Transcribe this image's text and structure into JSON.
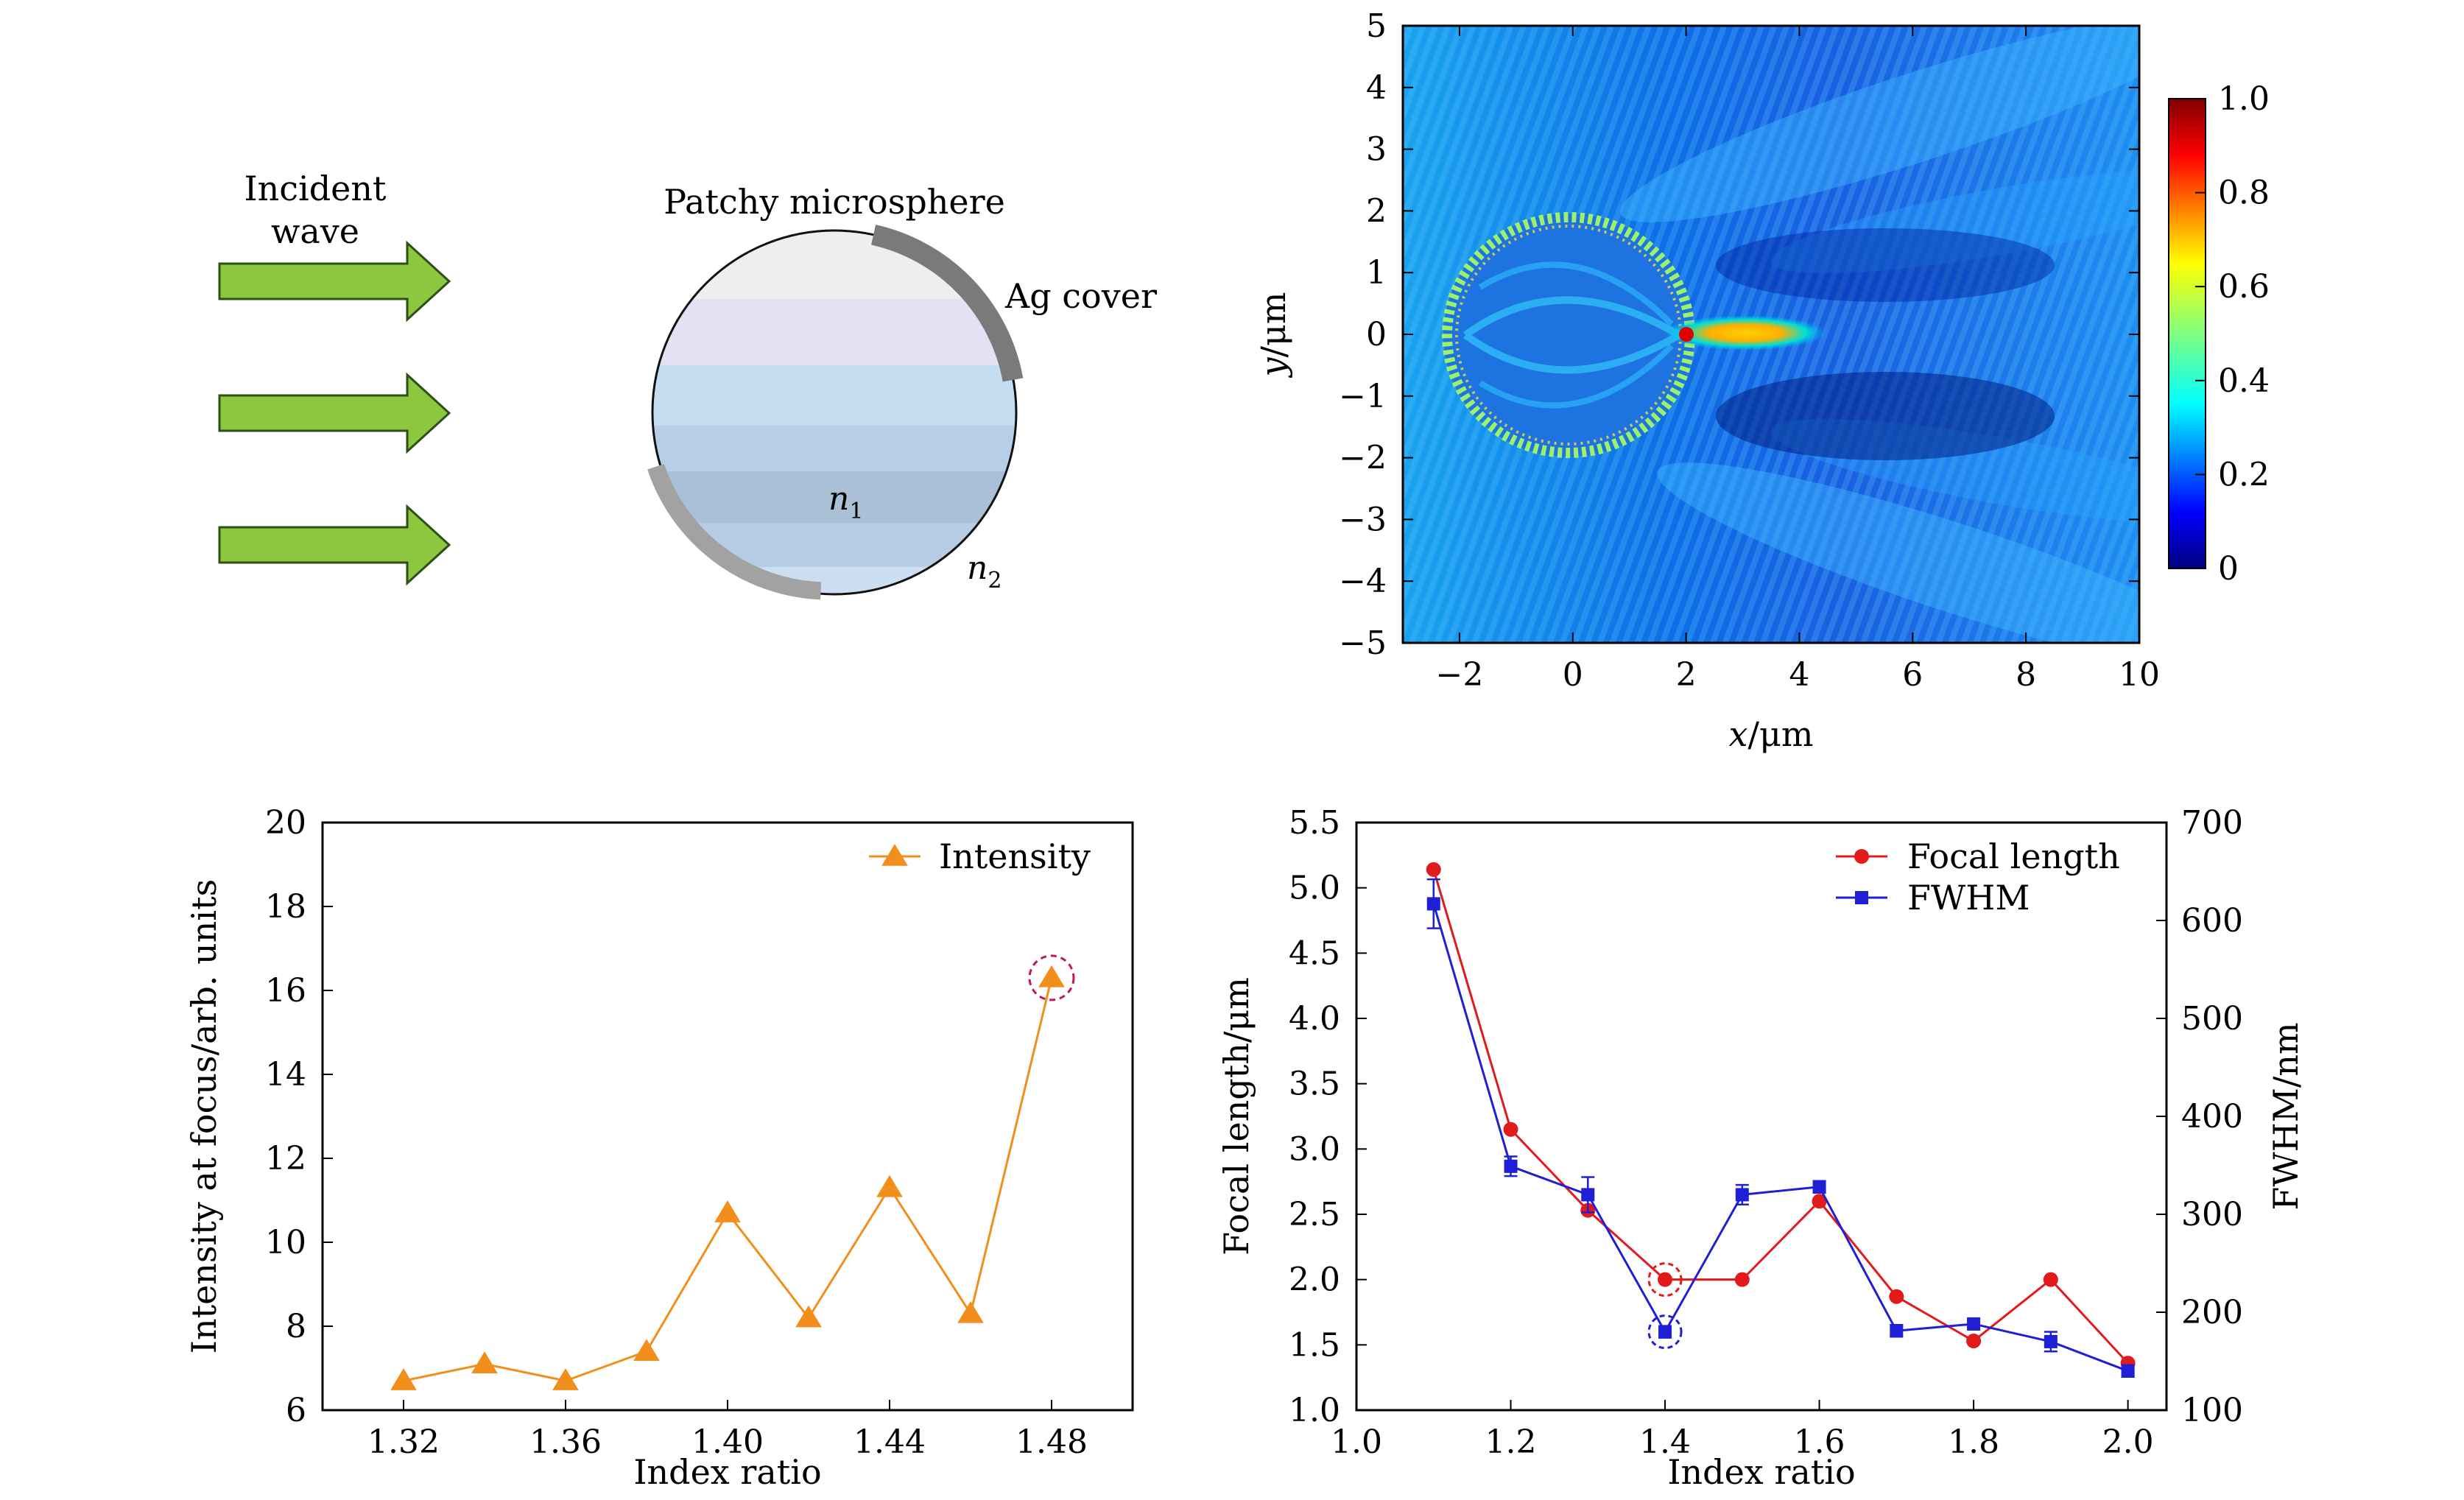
{
  "diagram": {
    "incident_label": [
      "Incident",
      "wave"
    ],
    "sphere_label": "Patchy microsphere",
    "ag_label": "Ag cover",
    "n1_label": "n",
    "n1_sub": "1",
    "n2_label": "n",
    "n2_sub": "2",
    "colors": {
      "arrow": "#8dc63f",
      "arrow_edge": "#2d5016",
      "cover": "#7a7a7a"
    }
  },
  "field_map": {
    "xlabel_var": "x",
    "xlabel_unit": "/μm",
    "ylabel_var": "y",
    "ylabel_unit": "/μm",
    "xlim": [
      -3,
      10
    ],
    "ylim": [
      -5,
      5
    ],
    "xticks": [
      -2,
      0,
      2,
      4,
      6,
      8,
      10
    ],
    "xtick_labels": [
      "−2",
      "0",
      "2",
      "4",
      "6",
      "8",
      "10"
    ],
    "yticks": [
      5,
      4,
      3,
      2,
      1,
      0,
      -1,
      -2,
      -3,
      -4,
      -5
    ],
    "ytick_labels": [
      "5",
      "4",
      "3",
      "2",
      "1",
      "0",
      "−1",
      "−2",
      "−3",
      "−4",
      "−5"
    ],
    "colorbar_ticks": [
      1.0,
      0.8,
      0.6,
      0.4,
      0.2,
      0
    ],
    "colorbar_labels": [
      "1.0",
      "0.8",
      "0.6",
      "0.4",
      "0.2",
      "0"
    ],
    "colormap": "jet"
  },
  "chart_data": [
    {
      "type": "line",
      "xlabel": "Index ratio",
      "ylabel": "Intensity at focus/arb. units",
      "xlim": [
        1.3,
        1.5
      ],
      "ylim": [
        6,
        20
      ],
      "xticks": [
        1.32,
        1.36,
        1.4,
        1.44,
        1.48
      ],
      "xtick_labels": [
        "1.32",
        "1.36",
        "1.40",
        "1.44",
        "1.48"
      ],
      "yticks": [
        6,
        8,
        10,
        12,
        14,
        16,
        18,
        20
      ],
      "ytick_labels": [
        "6",
        "8",
        "10",
        "12",
        "14",
        "16",
        "18",
        "20"
      ],
      "series": [
        {
          "name": "Intensity",
          "color": "#f28e1c",
          "x": [
            1.32,
            1.34,
            1.36,
            1.38,
            1.4,
            1.42,
            1.44,
            1.46,
            1.48
          ],
          "y": [
            6.7,
            7.1,
            6.7,
            7.4,
            10.7,
            8.2,
            11.3,
            8.3,
            16.3
          ]
        }
      ],
      "highlight": {
        "x": 1.48,
        "y": 16.3,
        "color": "#c2185b"
      },
      "legend": "top-right"
    },
    {
      "type": "line",
      "xlabel": "Index ratio",
      "ylabel": "Focal length/μm",
      "y2label": "FWHM/nm",
      "xlim": [
        1.0,
        2.05
      ],
      "ylim": [
        1.0,
        5.5
      ],
      "y2lim": [
        100,
        700
      ],
      "xticks": [
        1.0,
        1.2,
        1.4,
        1.6,
        1.8,
        2.0
      ],
      "xtick_labels": [
        "1.0",
        "1.2",
        "1.4",
        "1.6",
        "1.8",
        "2.0"
      ],
      "yticks": [
        1.0,
        1.5,
        2.0,
        2.5,
        3.0,
        3.5,
        4.0,
        4.5,
        5.0,
        5.5
      ],
      "ytick_labels": [
        "1.0",
        "1.5",
        "2.0",
        "2.5",
        "3.0",
        "3.5",
        "4.0",
        "4.5",
        "5.0",
        "5.5"
      ],
      "y2ticks": [
        100,
        200,
        300,
        400,
        500,
        600,
        700
      ],
      "y2tick_labels": [
        "100",
        "200",
        "300",
        "400",
        "500",
        "600",
        "700"
      ],
      "series": [
        {
          "name": "Focal length",
          "color": "#e31a1c",
          "marker": "circle",
          "axis": "left",
          "x": [
            1.1,
            1.2,
            1.3,
            1.4,
            1.5,
            1.6,
            1.7,
            1.8,
            1.9,
            2.0
          ],
          "y": [
            5.14,
            3.15,
            2.53,
            2.0,
            2.0,
            2.6,
            1.87,
            1.53,
            2.0,
            1.36
          ]
        },
        {
          "name": "FWHM",
          "color": "#1f1fd6",
          "marker": "square",
          "axis": "right",
          "x": [
            1.1,
            1.2,
            1.3,
            1.4,
            1.5,
            1.6,
            1.7,
            1.8,
            1.9,
            2.0
          ],
          "y": [
            617,
            349,
            320,
            180,
            320,
            328,
            181,
            188,
            170,
            140
          ],
          "err": [
            25,
            10,
            18,
            6,
            10,
            6,
            6,
            4,
            10,
            6
          ]
        }
      ],
      "highlights": [
        {
          "x": 1.4,
          "y": 2.0,
          "axis": "left",
          "color": "#e31a1c"
        },
        {
          "x": 1.4,
          "y": 180,
          "axis": "right",
          "color": "#1f1fd6"
        }
      ],
      "legend": "top-right"
    }
  ]
}
